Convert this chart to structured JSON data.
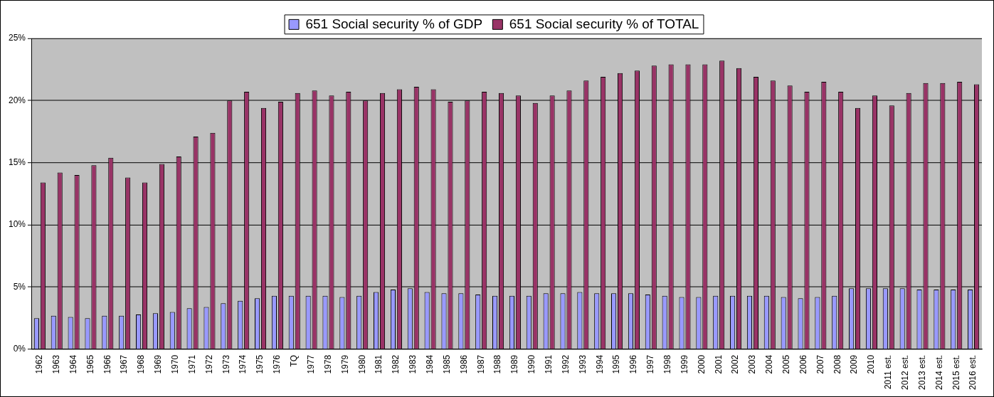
{
  "chart_data": {
    "type": "bar",
    "categories": [
      "1962",
      "1963",
      "1964",
      "1965",
      "1966",
      "1967",
      "1968",
      "1969",
      "1970",
      "1971",
      "1972",
      "1973",
      "1974",
      "1975",
      "1976",
      "TQ",
      "1977",
      "1978",
      "1979",
      "1980",
      "1981",
      "1982",
      "1983",
      "1984",
      "1985",
      "1986",
      "1987",
      "1988",
      "1989",
      "1990",
      "1991",
      "1992",
      "1993",
      "1994",
      "1995",
      "1996",
      "1997",
      "1998",
      "1999",
      "2000",
      "2001",
      "2002",
      "2003",
      "2004",
      "2005",
      "2006",
      "2007",
      "2008",
      "2009",
      "2010",
      "2011 est.",
      "2012 est.",
      "2013 est.",
      "2014 est.",
      "2015 est.",
      "2016 est."
    ],
    "series": [
      {
        "name": "651 Social security % of GDP",
        "color": "#9999ff",
        "values": [
          2.5,
          2.7,
          2.6,
          2.5,
          2.7,
          2.7,
          2.8,
          2.9,
          3.0,
          3.3,
          3.4,
          3.7,
          3.9,
          4.1,
          4.3,
          4.3,
          4.3,
          4.3,
          4.2,
          4.3,
          4.6,
          4.8,
          4.9,
          4.6,
          4.5,
          4.5,
          4.4,
          4.3,
          4.3,
          4.3,
          4.5,
          4.5,
          4.6,
          4.5,
          4.5,
          4.5,
          4.4,
          4.3,
          4.2,
          4.2,
          4.3,
          4.3,
          4.3,
          4.3,
          4.2,
          4.1,
          4.2,
          4.3,
          4.9,
          4.9,
          4.9,
          4.9,
          4.8,
          4.8,
          4.8,
          4.8
        ]
      },
      {
        "name": "651 Social security % of TOTAL",
        "color": "#993366",
        "values": [
          13.4,
          14.2,
          14.0,
          14.8,
          15.4,
          13.8,
          13.4,
          14.9,
          15.5,
          17.1,
          17.4,
          20.0,
          20.7,
          19.4,
          19.9,
          20.6,
          20.8,
          20.4,
          20.7,
          20.0,
          20.6,
          20.9,
          21.1,
          20.9,
          19.9,
          20.0,
          20.7,
          20.6,
          20.4,
          19.8,
          20.4,
          20.8,
          21.6,
          21.9,
          22.2,
          22.4,
          22.8,
          22.9,
          22.9,
          22.9,
          23.2,
          22.6,
          21.9,
          21.6,
          21.2,
          20.7,
          21.5,
          20.7,
          19.4,
          20.4,
          19.6,
          20.6,
          21.4,
          21.4,
          21.5,
          21.3
        ]
      }
    ],
    "ylim": [
      0,
      25
    ],
    "yticks": [
      {
        "value": 0,
        "label": "0%"
      },
      {
        "value": 5,
        "label": "5%"
      },
      {
        "value": 10,
        "label": "10%"
      },
      {
        "value": 15,
        "label": "15%"
      },
      {
        "value": 20,
        "label": "20%"
      },
      {
        "value": 25,
        "label": "25%"
      }
    ],
    "grid": "y",
    "legend": "top"
  }
}
